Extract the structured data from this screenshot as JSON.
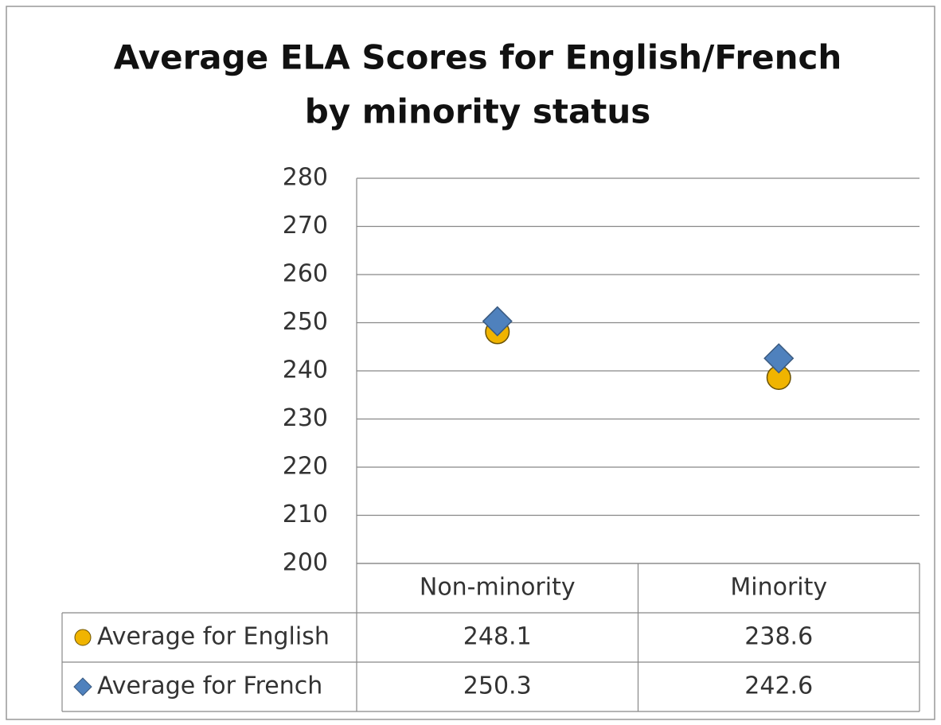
{
  "chart_data": {
    "type": "dot",
    "title": [
      "Average ELA Scores for English/French",
      "by minority status"
    ],
    "categories": [
      "Non-minority",
      "Minority"
    ],
    "series": [
      {
        "name": "Average for English",
        "color": "#f0b400",
        "marker": "circle",
        "values": [
          248.1,
          238.6
        ]
      },
      {
        "name": "Average for French",
        "color": "#4f81bd",
        "marker": "diamond",
        "values": [
          250.3,
          242.6
        ]
      }
    ],
    "ylim": [
      200,
      280
    ],
    "yticks": [
      200,
      210,
      220,
      230,
      240,
      250,
      260,
      270,
      280
    ],
    "grid": true,
    "data_table": true
  }
}
